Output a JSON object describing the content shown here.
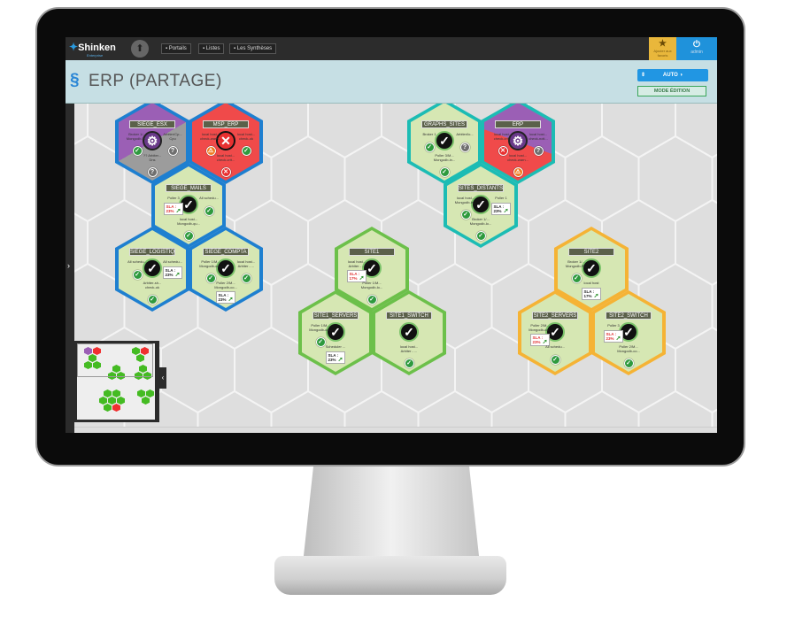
{
  "app": {
    "name": "Shinken",
    "edition": "Enterprise"
  },
  "nav": {
    "items": [
      "▪ Portails",
      "▪ Listes",
      "▪ Les Synthèses"
    ],
    "favorites": "Ajouter aux favoris",
    "user": "admin"
  },
  "page": {
    "title": "ERP (PARTAGE)",
    "auto_label": "AUTO",
    "mode_label": "MODE ÉDITION"
  },
  "colors": {
    "ok": "#2e9a3e",
    "unknown": "#6f6f6f",
    "critical": "#e83030",
    "warning": "#f07a20",
    "green_fill": "#d6e7b3",
    "purple": "#9b5fb5",
    "red": "#f04a4a",
    "gray": "#9c9c9c"
  },
  "icons": {
    "ok": "✓",
    "unknown": "?",
    "critical": "✕",
    "warning": "⚠",
    "tools": "⚙"
  },
  "hexes": [
    {
      "title": "SIEGE_ESX",
      "border": "#1e7fd0",
      "fill": [
        "#9b5fb5",
        "#9c9c9c"
      ],
      "center": "tools",
      "items": [
        {
          "pos": "left",
          "label": "Broker 1/...\nMongodb-la...",
          "status": "ok"
        },
        {
          "pos": "right",
          "label": "Arbiter/Cp...\nCpu",
          "status": "unknown"
        },
        {
          "pos": "bottom",
          "label": "?? Arbiter...\nDns",
          "status": "unknown"
        }
      ]
    },
    {
      "title": "MSP_ERP",
      "border": "#1e7fd0",
      "fill": [
        "#f04a4a"
      ],
      "center": "critical",
      "items": [
        {
          "pos": "left",
          "label": "local host...\ncheck-warn...",
          "status": "warning"
        },
        {
          "pos": "right",
          "label": "local host...\ncheck-ok",
          "status": "ok"
        },
        {
          "pos": "bottom",
          "label": "local host...\ncheck-crit...",
          "status": "critical"
        }
      ]
    },
    {
      "title": "SIEGE_MAILS",
      "border": "#1e7fd0",
      "fill": [
        "#d6e7b3"
      ],
      "center": "ok",
      "items": [
        {
          "pos": "left",
          "label": "Poller 3",
          "sla": "23%",
          "sla_color": "#e03030"
        },
        {
          "pos": "right",
          "label": "All schedu...",
          "status": "ok"
        },
        {
          "pos": "bottom",
          "label": "local host...\nMongodb-qu...",
          "status": "ok"
        }
      ]
    },
    {
      "title": "SIEGE_LOGISTIQU...",
      "border": "#1e7fd0",
      "fill": [
        "#d6e7b3"
      ],
      "center": "ok",
      "items": [
        {
          "pos": "left",
          "label": "All schedu...",
          "status": "ok"
        },
        {
          "pos": "right",
          "label": "All schedu...",
          "sla": "23%",
          "sla_color": "#222"
        },
        {
          "pos": "bottom",
          "label": "Arbiter-sh...\ncheck-ok",
          "status": "ok"
        }
      ]
    },
    {
      "title": "SIEGE_COMPTA",
      "border": "#1e7fd0",
      "fill": [
        "#d6e7b3"
      ],
      "center": "ok",
      "items": [
        {
          "pos": "left",
          "label": "Poller 1/M...\nMongodb-co...",
          "status": "ok"
        },
        {
          "pos": "right",
          "label": "local host...\nArbiter - ...",
          "status": "ok"
        },
        {
          "pos": "bottom",
          "label": "Poller 2/M...\nMongodb-co...",
          "sla": "23%",
          "sla_color": "#222"
        }
      ]
    },
    {
      "title": "GRAPHS_SITES",
      "border": "#1cbcb4",
      "fill": [
        "#d6e7b3"
      ],
      "center": "ok",
      "items": [
        {
          "pos": "left",
          "label": "Broker 1",
          "status": "ok"
        },
        {
          "pos": "right",
          "label": "Arbiter/lo...",
          "status": "unknown"
        },
        {
          "pos": "bottom",
          "label": "Poller 3/M...\nMongodb-in...",
          "status": "ok"
        }
      ]
    },
    {
      "title": "ERP",
      "border": "#1cbcb4",
      "fill": [
        "#9b5fb5",
        "#f04a4a"
      ],
      "center": "tools",
      "items": [
        {
          "pos": "left",
          "label": "local host...\ncheck-crit...",
          "status": "critical"
        },
        {
          "pos": "right",
          "label": "local host...\ncheck-noti...",
          "status": "unknown"
        },
        {
          "pos": "bottom",
          "label": "local host...\ncheck-warn...",
          "status": "warning"
        }
      ]
    },
    {
      "title": "SITES_DISTANTS",
      "border": "#1cbcb4",
      "fill": [
        "#d6e7b3"
      ],
      "center": "ok",
      "items": [
        {
          "pos": "left",
          "label": "local host...\nMongodb-in...",
          "status": "ok"
        },
        {
          "pos": "right",
          "label": "Poller 1",
          "sla": "23%",
          "sla_color": "#222"
        },
        {
          "pos": "bottom",
          "label": "Broker 1/...\nMongodb-lo...",
          "status": "ok"
        }
      ]
    },
    {
      "title": "SITE1",
      "border": "#6cc04a",
      "fill": [
        "#d6e7b3"
      ],
      "center": "ok",
      "items": [
        {
          "pos": "left",
          "label": "local host...\nArbiter - ...",
          "sla": "17%",
          "sla_color": "#e03030"
        },
        {
          "pos": "bottom",
          "label": "Poller 1/M...\nMongodb-lo...",
          "status": "ok"
        }
      ]
    },
    {
      "title": "SITE1_SERVERS",
      "border": "#6cc04a",
      "fill": [
        "#d6e7b3"
      ],
      "center": "ok",
      "items": [
        {
          "pos": "left",
          "label": "Poller 1/M...\nMongodb-co...",
          "status": "ok"
        },
        {
          "pos": "bottom",
          "label": "Scheduler ...",
          "sla": "23%",
          "sla_color": "#222"
        }
      ]
    },
    {
      "title": "SITE1_SWITCH",
      "border": "#6cc04a",
      "fill": [
        "#d6e7b3"
      ],
      "center": "ok",
      "items": [
        {
          "pos": "bottom",
          "label": "local host...\nArbiter - ...",
          "status": "ok"
        }
      ]
    },
    {
      "title": "SITE2",
      "border": "#f5b335",
      "fill": [
        "#d6e7b3"
      ],
      "center": "ok",
      "items": [
        {
          "pos": "left",
          "label": "Broker 1/...\nMongodb-R...",
          "status": "ok"
        },
        {
          "pos": "bottom",
          "label": "local host",
          "sla": "17%",
          "sla_color": "#222"
        }
      ]
    },
    {
      "title": "SITE2_SERVERS",
      "border": "#f5b335",
      "fill": [
        "#d6e7b3"
      ],
      "center": "ok",
      "items": [
        {
          "pos": "left",
          "label": "Poller 2/M...\nMongodb-co...",
          "sla": "23%",
          "sla_color": "#e03030"
        },
        {
          "pos": "bottom",
          "label": "All schedu...",
          "status": "ok"
        }
      ]
    },
    {
      "title": "SITE2_SWITCH",
      "border": "#f5b335",
      "fill": [
        "#d6e7b3"
      ],
      "center": "ok",
      "items": [
        {
          "pos": "left",
          "label": "Poller 3",
          "sla": "23%",
          "sla_color": "#e03030"
        },
        {
          "pos": "bottom",
          "label": "Poller 2/M...\nMongodb-co...",
          "status": "ok"
        }
      ]
    }
  ],
  "sla_label": "SLA :"
}
